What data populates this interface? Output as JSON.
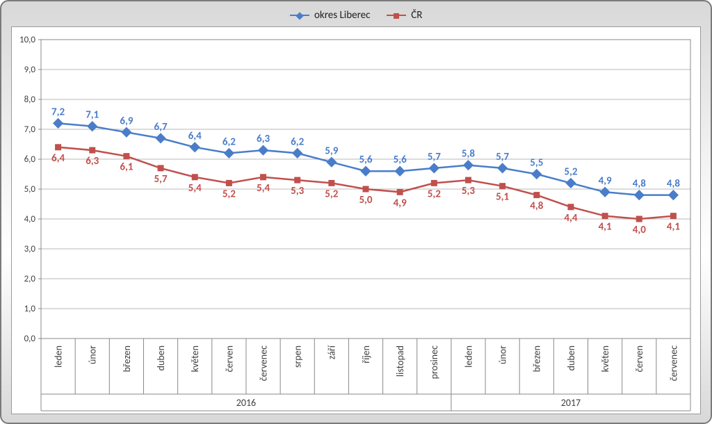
{
  "chart": {
    "type": "line",
    "background_color": "#ffffff",
    "frame_gradient": [
      "#d8d8d8",
      "#f4f4f4",
      "#ffffff",
      "#d8d8d8"
    ],
    "border_color": "#7a7a7a",
    "plot_border_color": "#9a9a9a",
    "grid_color": "#b8b8b8",
    "tick_color": "#888888",
    "y": {
      "min": 0.0,
      "max": 10.0,
      "step": 1.0,
      "labels": [
        "0,0",
        "1,0",
        "2,0",
        "3,0",
        "4,0",
        "5,0",
        "6,0",
        "7,0",
        "8,0",
        "9,0",
        "10,0"
      ],
      "label_fontsize": 13
    },
    "x": {
      "categories": [
        "leden",
        "únor",
        "březen",
        "duben",
        "květen",
        "červen",
        "červenec",
        "srpen",
        "září",
        "říjen",
        "listopad",
        "prosinec",
        "leden",
        "únor",
        "březen",
        "duben",
        "květen",
        "červen",
        "červenec"
      ],
      "years": [
        {
          "label": "2016",
          "span": 12
        },
        {
          "label": "2017",
          "span": 7
        }
      ],
      "label_fontsize": 14
    },
    "series": [
      {
        "name": "okres Liberec",
        "color": "#4a7dc9",
        "marker": "diamond",
        "marker_size": 9,
        "line_width": 2.5,
        "label_position": "above",
        "values": [
          7.2,
          7.1,
          6.9,
          6.7,
          6.4,
          6.2,
          6.3,
          6.2,
          5.9,
          5.6,
          5.6,
          5.7,
          5.8,
          5.7,
          5.5,
          5.2,
          4.9,
          4.8,
          4.8
        ],
        "value_labels": [
          "7,2",
          "7,1",
          "6,9",
          "6,7",
          "6,4",
          "6,2",
          "6,3",
          "6,2",
          "5,9",
          "5,6",
          "5,6",
          "5,7",
          "5,8",
          "5,7",
          "5,5",
          "5,2",
          "4,9",
          "4,8",
          "4,8"
        ]
      },
      {
        "name": "ČR",
        "color": "#c0504d",
        "marker": "square",
        "marker_size": 8,
        "line_width": 2.5,
        "label_position": "below",
        "values": [
          6.4,
          6.3,
          6.1,
          5.7,
          5.4,
          5.2,
          5.4,
          5.3,
          5.2,
          5.0,
          4.9,
          5.2,
          5.3,
          5.1,
          4.8,
          4.4,
          4.1,
          4.0,
          4.1
        ],
        "value_labels": [
          "6,4",
          "6,3",
          "6,1",
          "5,7",
          "5,4",
          "5,2",
          "5,4",
          "5,3",
          "5,2",
          "5,0",
          "4,9",
          "5,2",
          "5,3",
          "5,1",
          "4,8",
          "4,4",
          "4,1",
          "4,0",
          "4,1"
        ]
      }
    ],
    "value_label_fontsize": 15,
    "legend": {
      "position": "top-center",
      "fontsize": 15
    }
  }
}
